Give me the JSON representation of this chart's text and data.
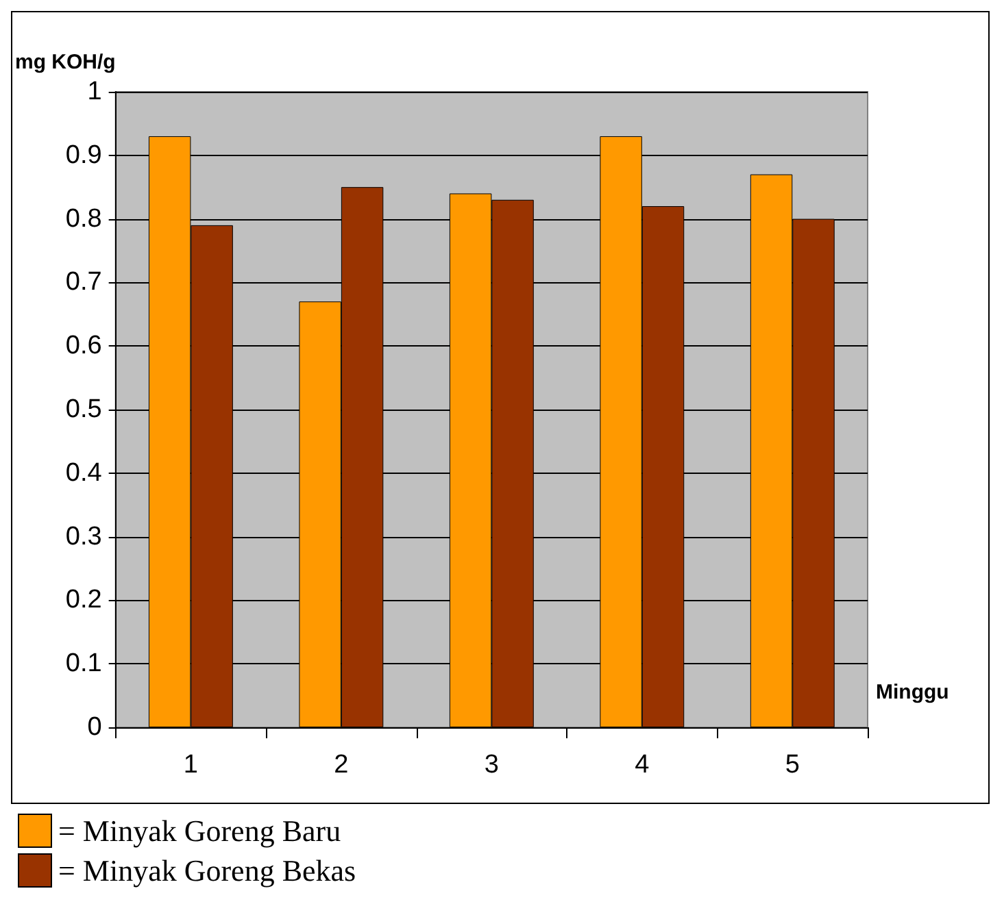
{
  "chart_data": {
    "type": "bar",
    "ylabel": "mg KOH/g",
    "xlabel": "Minggu",
    "categories": [
      "1",
      "2",
      "3",
      "4",
      "5"
    ],
    "series": [
      {
        "name": "= Minyak Goreng Baru",
        "color": "#ff9900",
        "values": [
          0.93,
          0.67,
          0.84,
          0.93,
          0.87
        ]
      },
      {
        "name": "= Minyak Goreng Bekas",
        "color": "#993300",
        "values": [
          0.79,
          0.85,
          0.83,
          0.82,
          0.8
        ]
      }
    ],
    "ylim": [
      0,
      1
    ],
    "yticks": [
      0,
      0.1,
      0.2,
      0.3,
      0.4,
      0.5,
      0.6,
      0.7,
      0.8,
      0.9,
      1
    ],
    "grid": "y",
    "legend": "bottom left"
  }
}
